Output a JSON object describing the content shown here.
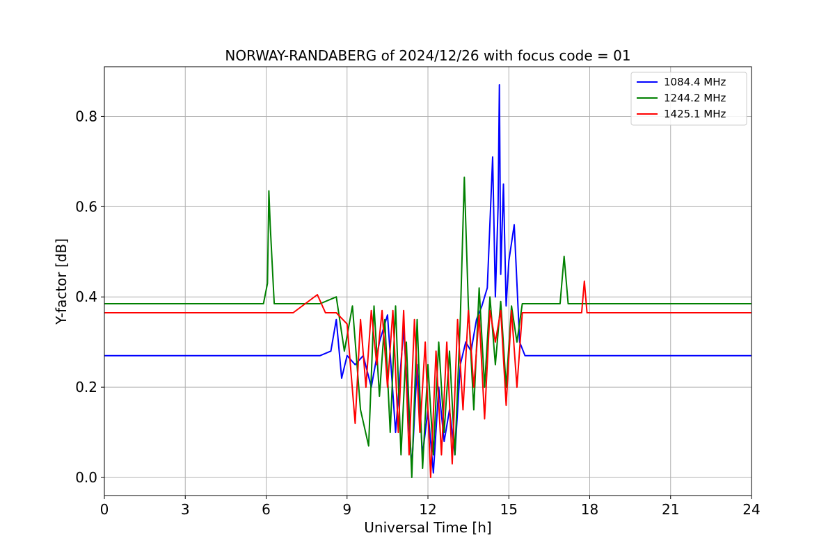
{
  "chart_data": {
    "type": "line",
    "title": "NORWAY-RANDABERG of 2024/12/26 with focus code = 01",
    "xlabel": "Universal Time [h]",
    "ylabel": "Y-factor [dB]",
    "xlim": [
      0,
      24
    ],
    "ylim": [
      -0.04,
      0.91
    ],
    "xticks": [
      0,
      3,
      6,
      9,
      12,
      15,
      18,
      21,
      24
    ],
    "xtick_labels": [
      "0",
      "3",
      "6",
      "9",
      "12",
      "15",
      "18",
      "21",
      "24"
    ],
    "yticks": [
      0.0,
      0.2,
      0.4,
      0.6,
      0.8
    ],
    "ytick_labels": [
      "0.0",
      "0.2",
      "0.4",
      "0.6",
      "0.8"
    ],
    "grid": true,
    "legend_position": "top-right",
    "series": [
      {
        "name": "1084.4 MHz",
        "color": "#0000ff",
        "x": [
          0,
          2,
          4,
          6,
          8,
          8.4,
          8.6,
          8.8,
          9.0,
          9.3,
          9.6,
          9.9,
          10.2,
          10.5,
          10.8,
          11.1,
          11.4,
          11.6,
          11.8,
          12.0,
          12.2,
          12.4,
          12.6,
          12.8,
          13.0,
          13.2,
          13.4,
          13.6,
          13.8,
          14.0,
          14.2,
          14.4,
          14.5,
          14.6,
          14.65,
          14.7,
          14.8,
          14.9,
          15.0,
          15.2,
          15.4,
          15.6,
          16,
          17,
          18,
          19,
          20,
          21,
          22,
          23,
          24
        ],
        "y": [
          0.27,
          0.27,
          0.27,
          0.27,
          0.27,
          0.28,
          0.35,
          0.22,
          0.27,
          0.25,
          0.27,
          0.2,
          0.3,
          0.36,
          0.1,
          0.33,
          0.02,
          0.25,
          0.05,
          0.15,
          0.01,
          0.2,
          0.08,
          0.15,
          0.05,
          0.25,
          0.3,
          0.28,
          0.35,
          0.38,
          0.42,
          0.71,
          0.4,
          0.6,
          0.87,
          0.45,
          0.65,
          0.38,
          0.48,
          0.56,
          0.3,
          0.27,
          0.27,
          0.27,
          0.27,
          0.27,
          0.27,
          0.27,
          0.27,
          0.27,
          0.27
        ]
      },
      {
        "name": "1244.2 MHz",
        "color": "#008000",
        "x": [
          0,
          2,
          4,
          5.9,
          6.05,
          6.1,
          6.15,
          6.3,
          8.0,
          8.6,
          8.9,
          9.2,
          9.5,
          9.8,
          10.0,
          10.2,
          10.4,
          10.6,
          10.8,
          11.0,
          11.2,
          11.4,
          11.6,
          11.8,
          12.0,
          12.2,
          12.4,
          12.6,
          12.8,
          13.0,
          13.2,
          13.35,
          13.5,
          13.7,
          13.9,
          14.1,
          14.3,
          14.5,
          14.7,
          14.9,
          15.1,
          15.3,
          15.5,
          16.0,
          16.9,
          17.05,
          17.2,
          18,
          19,
          20,
          21,
          22,
          23,
          24
        ],
        "y": [
          0.385,
          0.385,
          0.385,
          0.385,
          0.43,
          0.635,
          0.56,
          0.385,
          0.385,
          0.4,
          0.28,
          0.38,
          0.15,
          0.07,
          0.38,
          0.18,
          0.35,
          0.1,
          0.38,
          0.05,
          0.3,
          0.0,
          0.35,
          0.02,
          0.25,
          0.05,
          0.3,
          0.1,
          0.28,
          0.05,
          0.35,
          0.665,
          0.38,
          0.15,
          0.42,
          0.2,
          0.4,
          0.25,
          0.39,
          0.2,
          0.38,
          0.3,
          0.385,
          0.385,
          0.385,
          0.49,
          0.385,
          0.385,
          0.385,
          0.385,
          0.385,
          0.385,
          0.385,
          0.385
        ]
      },
      {
        "name": "1425.1 MHz",
        "color": "#ff0000",
        "x": [
          0,
          1,
          2,
          3,
          4,
          5,
          6,
          7,
          7.9,
          8.2,
          8.6,
          9.0,
          9.3,
          9.5,
          9.7,
          9.9,
          10.1,
          10.3,
          10.5,
          10.7,
          10.9,
          11.1,
          11.3,
          11.5,
          11.7,
          11.9,
          12.1,
          12.3,
          12.5,
          12.7,
          12.9,
          13.1,
          13.3,
          13.5,
          13.7,
          13.9,
          14.1,
          14.3,
          14.5,
          14.7,
          14.9,
          15.1,
          15.3,
          15.5,
          16,
          17,
          17.7,
          17.8,
          17.9,
          19,
          20,
          21,
          22,
          23,
          24
        ],
        "y": [
          0.365,
          0.365,
          0.365,
          0.365,
          0.365,
          0.365,
          0.365,
          0.365,
          0.405,
          0.365,
          0.365,
          0.34,
          0.12,
          0.35,
          0.2,
          0.37,
          0.25,
          0.37,
          0.2,
          0.37,
          0.1,
          0.37,
          0.05,
          0.35,
          0.1,
          0.3,
          0.0,
          0.28,
          0.05,
          0.3,
          0.03,
          0.35,
          0.15,
          0.37,
          0.2,
          0.36,
          0.13,
          0.37,
          0.3,
          0.37,
          0.16,
          0.37,
          0.2,
          0.365,
          0.365,
          0.365,
          0.365,
          0.435,
          0.365,
          0.365,
          0.365,
          0.365,
          0.365,
          0.365,
          0.365
        ]
      }
    ]
  }
}
